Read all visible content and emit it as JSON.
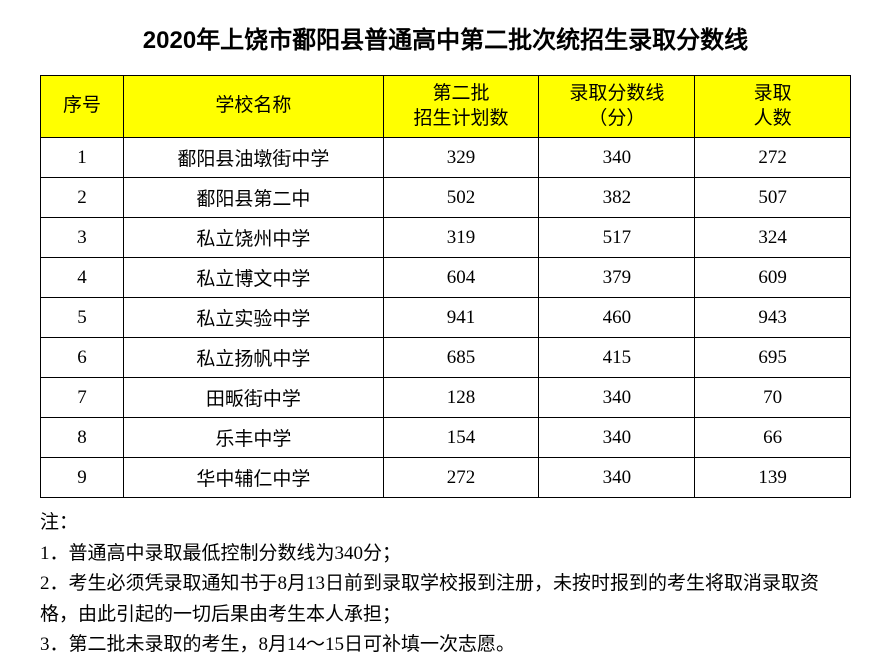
{
  "title": "2020年上饶市鄱阳县普通高中第二批次统招生录取分数线",
  "table": {
    "headers": {
      "seq": "序号",
      "name": "学校名称",
      "plan": "第二批\n招生计划数",
      "score": "录取分数线\n（分）",
      "count": "录取\n人数"
    },
    "rows": [
      {
        "seq": "1",
        "name": "鄱阳县油墩街中学",
        "plan": "329",
        "score": "340",
        "count": "272"
      },
      {
        "seq": "2",
        "name": "鄱阳县第二中",
        "plan": "502",
        "score": "382",
        "count": "507"
      },
      {
        "seq": "3",
        "name": "私立饶州中学",
        "plan": "319",
        "score": "517",
        "count": "324"
      },
      {
        "seq": "4",
        "name": "私立博文中学",
        "plan": "604",
        "score": "379",
        "count": "609"
      },
      {
        "seq": "5",
        "name": "私立实验中学",
        "plan": "941",
        "score": "460",
        "count": "943"
      },
      {
        "seq": "6",
        "name": "私立扬帆中学",
        "plan": "685",
        "score": "415",
        "count": "695"
      },
      {
        "seq": "7",
        "name": "田畈街中学",
        "plan": "128",
        "score": "340",
        "count": "70"
      },
      {
        "seq": "8",
        "name": "乐丰中学",
        "plan": "154",
        "score": "340",
        "count": "66"
      },
      {
        "seq": "9",
        "name": "华中辅仁中学",
        "plan": "272",
        "score": "340",
        "count": "139"
      }
    ]
  },
  "notes": {
    "header": "注：",
    "lines": [
      "1．普通高中录取最低控制分数线为340分；",
      "2．考生必须凭录取通知书于8月13日前到录取学校报到注册，未按时报到的考生将取消录取资格，由此引起的一切后果由考生本人承担；",
      "3．第二批未录取的考生，8月14～15日可补填一次志愿。"
    ]
  },
  "style": {
    "header_bg": "#ffff00",
    "border_color": "#000000",
    "title_fontsize": 24,
    "cell_fontsize": 19,
    "note_fontsize": 19
  }
}
